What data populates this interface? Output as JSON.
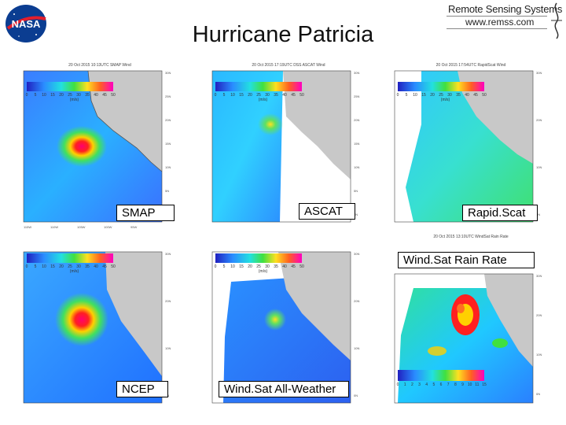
{
  "header": {
    "title": "Hurricane Patricia",
    "org_line1": "Remote Sensing Systems",
    "org_line2": "www.remss.com",
    "nasa_text": "NASA"
  },
  "colors": {
    "ocean_low": "#2f5fff",
    "ocean_mid": "#29b9ff",
    "land": "#c8c8c8",
    "eye": "#ff0060",
    "ring": "#ffcc00"
  },
  "panels": [
    {
      "id": "smap",
      "label": "SMAP",
      "map_title": "20 Oct 2015 10:13UTC SMAP Wind"
    },
    {
      "id": "ascat",
      "label": "ASCAT",
      "map_title": "20 Oct 2015 17:19UTC DSS ASCAT Wind"
    },
    {
      "id": "rapidscat",
      "label": "Rapid.Scat",
      "map_title": "20 Oct 2015 17:54UTC RapidScat Wind"
    },
    {
      "id": "ncep",
      "label": "NCEP",
      "map_title": ""
    },
    {
      "id": "windsat-allweather",
      "label": "Wind.Sat All-Weather",
      "map_title": ""
    },
    {
      "id": "windsat-rainrate",
      "label": "Wind.Sat  Rain Rate",
      "map_title": "20 Oct 2015 13:10UTC WindSat Rain Rate"
    }
  ],
  "wind_scale": [
    "0",
    "5",
    "10",
    "15",
    "20",
    "25",
    "30",
    "35",
    "40",
    "45",
    "50"
  ],
  "wind_unit": "(m/s)",
  "rain_scale": [
    "0",
    "1",
    "2",
    "3",
    "4",
    "5",
    "6",
    "7",
    "8",
    "9",
    "10",
    "11",
    "15"
  ]
}
